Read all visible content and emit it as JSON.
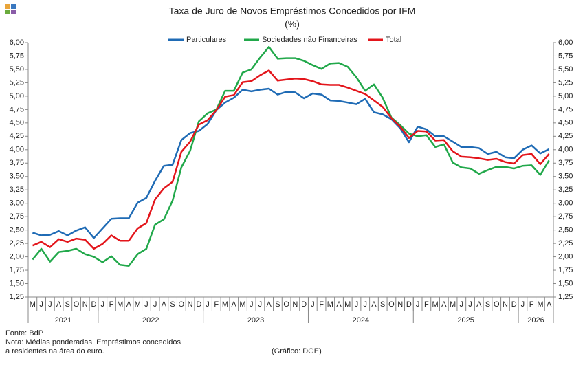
{
  "chart_data": {
    "type": "line",
    "title": "Taxa de Juro de Novos Empréstimos  Concedidos por IFM",
    "subtitle": "(%)",
    "categories": [
      "M",
      "J",
      "J",
      "A",
      "S",
      "O",
      "N",
      "D",
      "J",
      "F",
      "M",
      "A",
      "M",
      "J",
      "J",
      "A",
      "S",
      "O",
      "N",
      "D",
      "J",
      "F",
      "M",
      "A",
      "M",
      "J",
      "J",
      "A",
      "S",
      "O",
      "N",
      "D",
      "J",
      "F",
      "M",
      "A",
      "M",
      "J",
      "J",
      "A",
      "S",
      "O",
      "N",
      "D",
      "J",
      "F",
      "M",
      "A",
      "M",
      "J",
      "J",
      "A",
      "S",
      "O",
      "N",
      "D",
      "J",
      "F",
      "M",
      "A"
    ],
    "year_labels": [
      "2021",
      "2022",
      "2023",
      "2024",
      "2025",
      "2026"
    ],
    "series": [
      {
        "name": "Particulares",
        "color": "#1f6bb5",
        "values": [
          2.45,
          2.4,
          2.41,
          2.48,
          2.4,
          2.49,
          2.55,
          2.35,
          2.53,
          2.71,
          2.72,
          2.72,
          3.01,
          3.1,
          3.42,
          3.7,
          3.72,
          4.18,
          4.31,
          4.35,
          4.48,
          4.74,
          4.88,
          4.97,
          5.12,
          5.09,
          5.12,
          5.14,
          5.03,
          5.08,
          5.07,
          4.96,
          5.05,
          5.03,
          4.92,
          4.91,
          4.88,
          4.85,
          4.95,
          4.7,
          4.66,
          4.57,
          4.4,
          4.14,
          4.43,
          4.38,
          4.25,
          4.25,
          4.15,
          4.05,
          4.05,
          4.03,
          3.92,
          3.96,
          3.86,
          3.84,
          4.0,
          4.08,
          3.93,
          4.01
        ]
      },
      {
        "name": "Sociedades não Financeiras",
        "color": "#21a84a",
        "values": [
          1.95,
          2.15,
          1.91,
          2.09,
          2.11,
          2.15,
          2.05,
          2.0,
          1.9,
          2.01,
          1.85,
          1.83,
          2.05,
          2.15,
          2.6,
          2.7,
          3.05,
          3.67,
          3.98,
          4.53,
          4.68,
          4.75,
          5.1,
          5.1,
          5.44,
          5.5,
          5.72,
          5.92,
          5.7,
          5.71,
          5.71,
          5.66,
          5.58,
          5.51,
          5.61,
          5.62,
          5.55,
          5.35,
          5.1,
          5.22,
          4.97,
          4.6,
          4.46,
          4.3,
          4.25,
          4.27,
          4.05,
          4.1,
          3.76,
          3.67,
          3.65,
          3.55,
          3.62,
          3.68,
          3.68,
          3.65,
          3.7,
          3.71,
          3.53,
          3.8
        ]
      },
      {
        "name": "Total",
        "color": "#e3151b",
        "values": [
          2.21,
          2.28,
          2.18,
          2.33,
          2.28,
          2.34,
          2.32,
          2.15,
          2.24,
          2.4,
          2.3,
          2.3,
          2.53,
          2.63,
          3.07,
          3.28,
          3.4,
          3.96,
          4.15,
          4.47,
          4.55,
          4.74,
          4.99,
          5.02,
          5.26,
          5.28,
          5.39,
          5.48,
          5.29,
          5.31,
          5.33,
          5.32,
          5.28,
          5.22,
          5.21,
          5.21,
          5.16,
          5.1,
          5.04,
          4.92,
          4.8,
          4.59,
          4.43,
          4.22,
          4.35,
          4.34,
          4.17,
          4.18,
          3.97,
          3.87,
          3.86,
          3.84,
          3.81,
          3.83,
          3.77,
          3.74,
          3.9,
          3.92,
          3.73,
          3.92
        ]
      }
    ],
    "ylim": [
      1.25,
      6
    ],
    "yticks": [
      {
        "value": 1.25,
        "label": "1,25"
      },
      {
        "value": 1.5,
        "label": "1,50"
      },
      {
        "value": 1.75,
        "label": "1,75"
      },
      {
        "value": 2,
        "label": "2,00"
      },
      {
        "value": 2.25,
        "label": "2,25"
      },
      {
        "value": 2.5,
        "label": "2,50"
      },
      {
        "value": 2.75,
        "label": "2,75"
      },
      {
        "value": 3,
        "label": "3,00"
      },
      {
        "value": 3.25,
        "label": "3,25"
      },
      {
        "value": 3.5,
        "label": "3,50"
      },
      {
        "value": 3.75,
        "label": "3,75"
      },
      {
        "value": 4,
        "label": "4,00"
      },
      {
        "value": 4.25,
        "label": "4,25"
      },
      {
        "value": 4.5,
        "label": "4,50"
      },
      {
        "value": 4.75,
        "label": "4,75"
      },
      {
        "value": 5,
        "label": "5,00"
      },
      {
        "value": 5.25,
        "label": "5,25"
      },
      {
        "value": 5.5,
        "label": "5,50"
      },
      {
        "value": 5.75,
        "label": "5,75"
      },
      {
        "value": 6,
        "label": "6,00"
      }
    ],
    "grid": false,
    "legend": "top",
    "source": "Fonte: BdP",
    "note": [
      "Nota: Médias ponderadas. Empréstimos concedidos",
      "a residentes na área do euro."
    ],
    "credit": "(Gráfico: DGE)"
  }
}
